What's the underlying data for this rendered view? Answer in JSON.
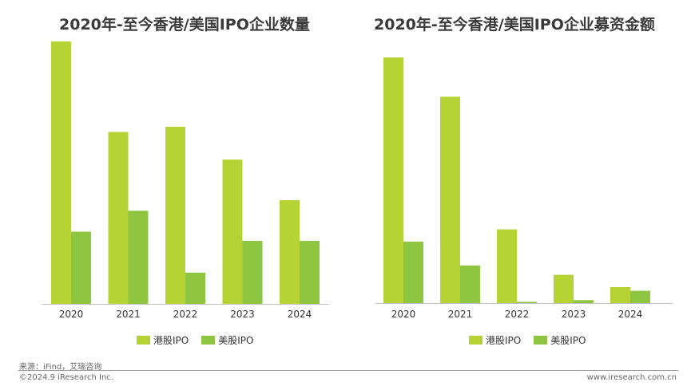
{
  "colors": {
    "hk": "#b5d334",
    "us": "#8ec641",
    "axis": "#bfbfbf"
  },
  "chart_data": [
    {
      "type": "bar",
      "title": "2020年-至今香港/美国IPO企业数量",
      "categories": [
        "2020",
        "2021",
        "2022",
        "2023",
        "2024"
      ],
      "series": [
        {
          "name": "港股IPO",
          "values": [
            100,
            65.5,
            67.5,
            55,
            39.5
          ]
        },
        {
          "name": "美股IPO",
          "values": [
            27.5,
            35.5,
            11.9,
            24,
            24
          ]
        }
      ],
      "ylim": [
        0,
        100
      ]
    },
    {
      "type": "bar",
      "title": "2020年-至今香港/美国IPO企业募资金额",
      "categories": [
        "2020",
        "2021",
        "2022",
        "2023",
        "2024"
      ],
      "series": [
        {
          "name": "港股IPO",
          "values": [
            100,
            84,
            30,
            11.5,
            6.5
          ]
        },
        {
          "name": "美股IPO",
          "values": [
            25,
            15.3,
            0.5,
            1.2,
            5
          ]
        }
      ],
      "ylim": [
        0,
        100
      ]
    }
  ],
  "footer": {
    "source": "来源：iFind，艾瑞咨询",
    "copyright": "©2024.9 iResearch Inc.",
    "site": "www.iresearch.com.cn"
  }
}
